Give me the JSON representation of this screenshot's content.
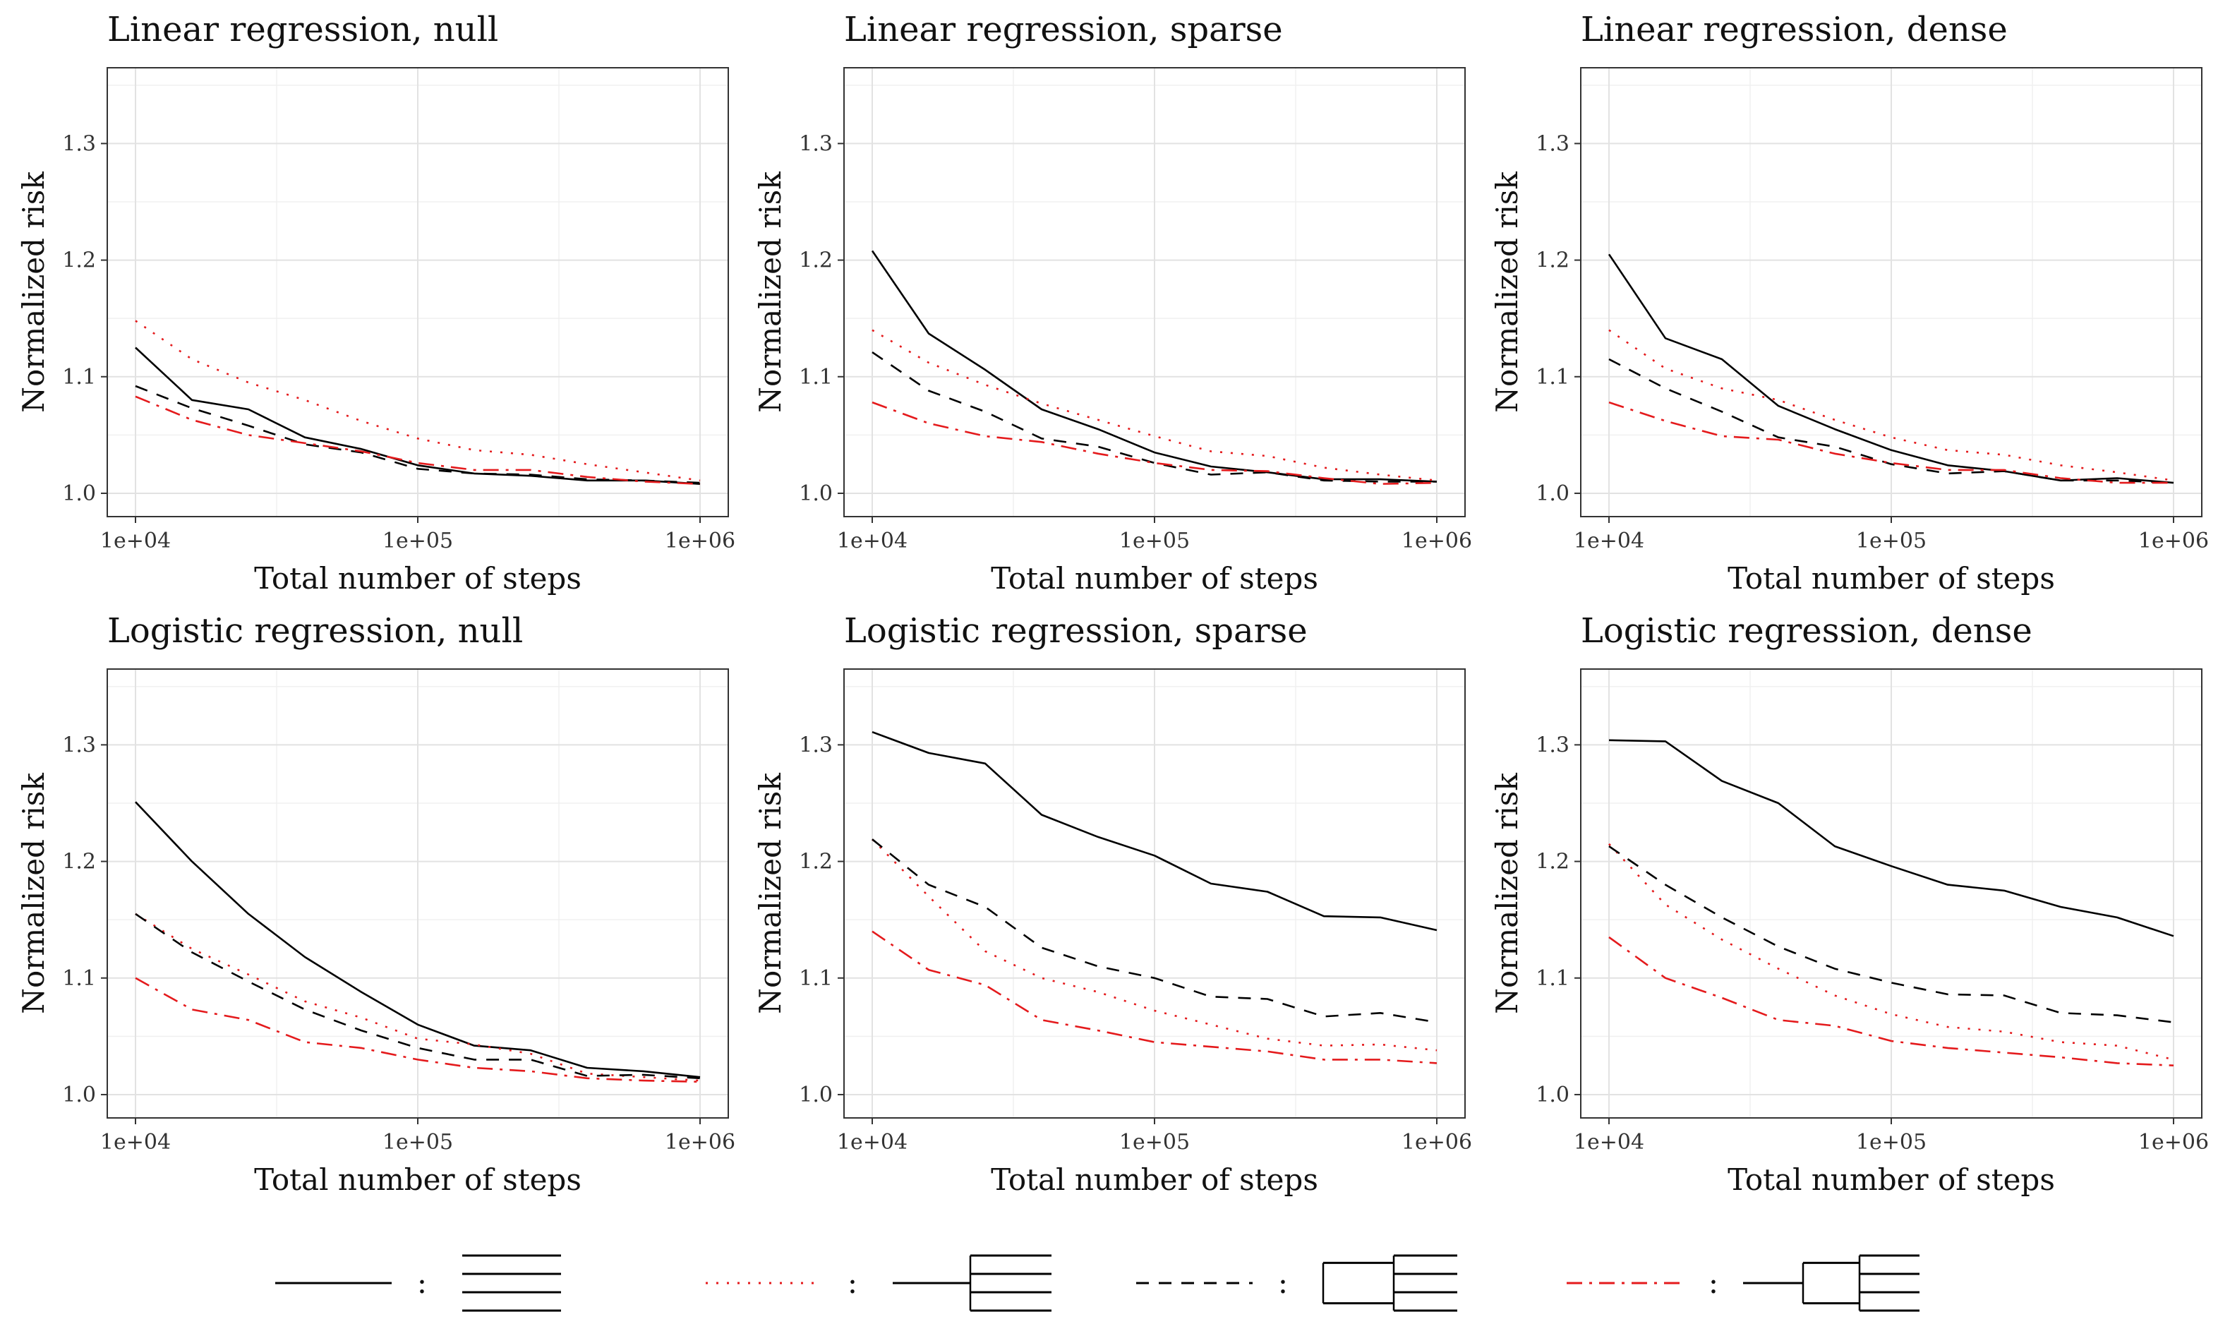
{
  "chart_data": [
    {
      "type": "line",
      "title": "Linear regression, null",
      "xlabel": "Total number of steps",
      "ylabel": "Normalized risk",
      "xscale": "log",
      "xlim": [
        10000,
        1000000
      ],
      "ylim": [
        0.98,
        1.365
      ],
      "xticks": [
        "1e+04",
        "1e+05",
        "1e+06"
      ],
      "yticks": [
        "1.0",
        "1.1",
        "1.2",
        "1.3"
      ],
      "grid": true,
      "x": [
        10000,
        15850,
        25120,
        39810,
        63100,
        100000,
        158500,
        251200,
        398100,
        631000,
        1000000
      ],
      "series": [
        {
          "style": "solid",
          "color": "#000000",
          "values": [
            1.125,
            1.08,
            1.072,
            1.048,
            1.038,
            1.024,
            1.017,
            1.015,
            1.011,
            1.011,
            1.008
          ]
        },
        {
          "style": "dotted",
          "color": "#e41a1c",
          "values": [
            1.148,
            1.115,
            1.095,
            1.08,
            1.062,
            1.047,
            1.037,
            1.033,
            1.025,
            1.018,
            1.011
          ]
        },
        {
          "style": "dashed",
          "color": "#000000",
          "values": [
            1.092,
            1.073,
            1.058,
            1.042,
            1.035,
            1.021,
            1.017,
            1.016,
            1.012,
            1.011,
            1.009
          ]
        },
        {
          "style": "dashdot",
          "color": "#e41a1c",
          "values": [
            1.083,
            1.063,
            1.05,
            1.043,
            1.036,
            1.026,
            1.02,
            1.02,
            1.014,
            1.01,
            1.008
          ]
        }
      ]
    },
    {
      "type": "line",
      "title": "Linear regression, sparse",
      "xlabel": "Total number of steps",
      "ylabel": "Normalized risk",
      "xscale": "log",
      "xlim": [
        10000,
        1000000
      ],
      "ylim": [
        0.98,
        1.365
      ],
      "xticks": [
        "1e+04",
        "1e+05",
        "1e+06"
      ],
      "yticks": [
        "1.0",
        "1.1",
        "1.2",
        "1.3"
      ],
      "grid": true,
      "x": [
        10000,
        15850,
        25120,
        39810,
        63100,
        100000,
        158500,
        251200,
        398100,
        631000,
        1000000
      ],
      "series": [
        {
          "style": "solid",
          "color": "#000000",
          "values": [
            1.208,
            1.137,
            1.106,
            1.072,
            1.055,
            1.035,
            1.023,
            1.018,
            1.012,
            1.012,
            1.01
          ]
        },
        {
          "style": "dotted",
          "color": "#e41a1c",
          "values": [
            1.14,
            1.112,
            1.093,
            1.077,
            1.063,
            1.049,
            1.036,
            1.032,
            1.022,
            1.016,
            1.011
          ]
        },
        {
          "style": "dashed",
          "color": "#000000",
          "values": [
            1.121,
            1.088,
            1.07,
            1.047,
            1.04,
            1.026,
            1.016,
            1.018,
            1.011,
            1.01,
            1.01
          ]
        },
        {
          "style": "dashdot",
          "color": "#e41a1c",
          "values": [
            1.078,
            1.06,
            1.049,
            1.044,
            1.034,
            1.026,
            1.02,
            1.019,
            1.013,
            1.008,
            1.009
          ]
        }
      ]
    },
    {
      "type": "line",
      "title": "Linear regression, dense",
      "xlabel": "Total number of steps",
      "ylabel": "Normalized risk",
      "xscale": "log",
      "xlim": [
        10000,
        1000000
      ],
      "ylim": [
        0.98,
        1.365
      ],
      "xticks": [
        "1e+04",
        "1e+05",
        "1e+06"
      ],
      "yticks": [
        "1.0",
        "1.1",
        "1.2",
        "1.3"
      ],
      "grid": true,
      "x": [
        10000,
        15850,
        25120,
        39810,
        63100,
        100000,
        158500,
        251200,
        398100,
        631000,
        1000000
      ],
      "series": [
        {
          "style": "solid",
          "color": "#000000",
          "values": [
            1.205,
            1.133,
            1.115,
            1.075,
            1.055,
            1.037,
            1.024,
            1.019,
            1.011,
            1.013,
            1.009
          ]
        },
        {
          "style": "dotted",
          "color": "#e41a1c",
          "values": [
            1.14,
            1.107,
            1.09,
            1.08,
            1.063,
            1.048,
            1.037,
            1.033,
            1.024,
            1.018,
            1.011
          ]
        },
        {
          "style": "dashed",
          "color": "#000000",
          "values": [
            1.115,
            1.09,
            1.07,
            1.048,
            1.04,
            1.025,
            1.017,
            1.019,
            1.011,
            1.011,
            1.009
          ]
        },
        {
          "style": "dashdot",
          "color": "#e41a1c",
          "values": [
            1.078,
            1.062,
            1.049,
            1.046,
            1.034,
            1.026,
            1.02,
            1.02,
            1.013,
            1.009,
            1.009
          ]
        }
      ]
    },
    {
      "type": "line",
      "title": "Logistic regression, null",
      "xlabel": "Total number of steps",
      "ylabel": "Normalized risk",
      "xscale": "log",
      "xlim": [
        10000,
        1000000
      ],
      "ylim": [
        0.98,
        1.365
      ],
      "xticks": [
        "1e+04",
        "1e+05",
        "1e+06"
      ],
      "yticks": [
        "1.0",
        "1.1",
        "1.2",
        "1.3"
      ],
      "grid": true,
      "x": [
        10000,
        15850,
        25120,
        39810,
        63100,
        100000,
        158500,
        251200,
        398100,
        631000,
        1000000
      ],
      "series": [
        {
          "style": "solid",
          "color": "#000000",
          "values": [
            1.251,
            1.2,
            1.155,
            1.118,
            1.088,
            1.06,
            1.042,
            1.038,
            1.023,
            1.02,
            1.015
          ]
        },
        {
          "style": "dotted",
          "color": "#e41a1c",
          "values": [
            1.155,
            1.125,
            1.103,
            1.08,
            1.066,
            1.048,
            1.043,
            1.035,
            1.018,
            1.015,
            1.012
          ]
        },
        {
          "style": "dashed",
          "color": "#000000",
          "values": [
            1.155,
            1.122,
            1.097,
            1.073,
            1.055,
            1.04,
            1.03,
            1.03,
            1.016,
            1.017,
            1.014
          ]
        },
        {
          "style": "dashdot",
          "color": "#e41a1c",
          "values": [
            1.1,
            1.073,
            1.064,
            1.045,
            1.04,
            1.03,
            1.023,
            1.02,
            1.014,
            1.012,
            1.011
          ]
        }
      ]
    },
    {
      "type": "line",
      "title": "Logistic regression, sparse",
      "xlabel": "Total number of steps",
      "ylabel": "Normalized risk",
      "xscale": "log",
      "xlim": [
        10000,
        1000000
      ],
      "ylim": [
        0.98,
        1.365
      ],
      "xticks": [
        "1e+04",
        "1e+05",
        "1e+06"
      ],
      "yticks": [
        "1.0",
        "1.1",
        "1.2",
        "1.3"
      ],
      "grid": true,
      "x": [
        10000,
        15850,
        25120,
        39810,
        63100,
        100000,
        158500,
        251200,
        398100,
        631000,
        1000000
      ],
      "series": [
        {
          "style": "solid",
          "color": "#000000",
          "values": [
            1.311,
            1.293,
            1.284,
            1.24,
            1.221,
            1.205,
            1.181,
            1.174,
            1.153,
            1.152,
            1.141
          ]
        },
        {
          "style": "dotted",
          "color": "#e41a1c",
          "values": [
            1.219,
            1.17,
            1.123,
            1.1,
            1.088,
            1.072,
            1.06,
            1.048,
            1.042,
            1.043,
            1.038
          ]
        },
        {
          "style": "dashed",
          "color": "#000000",
          "values": [
            1.219,
            1.18,
            1.161,
            1.126,
            1.11,
            1.1,
            1.084,
            1.082,
            1.067,
            1.07,
            1.062
          ]
        },
        {
          "style": "dashdot",
          "color": "#e41a1c",
          "values": [
            1.14,
            1.107,
            1.094,
            1.064,
            1.055,
            1.045,
            1.041,
            1.037,
            1.03,
            1.03,
            1.027
          ]
        }
      ]
    },
    {
      "type": "line",
      "title": "Logistic regression, dense",
      "xlabel": "Total number of steps",
      "ylabel": "Normalized risk",
      "xscale": "log",
      "xlim": [
        10000,
        1000000
      ],
      "ylim": [
        0.98,
        1.365
      ],
      "xticks": [
        "1e+04",
        "1e+05",
        "1e+06"
      ],
      "yticks": [
        "1.0",
        "1.1",
        "1.2",
        "1.3"
      ],
      "grid": true,
      "x": [
        10000,
        15850,
        25120,
        39810,
        63100,
        100000,
        158500,
        251200,
        398100,
        631000,
        1000000
      ],
      "series": [
        {
          "style": "solid",
          "color": "#000000",
          "values": [
            1.304,
            1.303,
            1.269,
            1.25,
            1.213,
            1.196,
            1.18,
            1.175,
            1.161,
            1.152,
            1.136
          ]
        },
        {
          "style": "dotted",
          "color": "#e41a1c",
          "values": [
            1.215,
            1.163,
            1.133,
            1.108,
            1.085,
            1.069,
            1.058,
            1.054,
            1.045,
            1.042,
            1.03
          ]
        },
        {
          "style": "dashed",
          "color": "#000000",
          "values": [
            1.213,
            1.18,
            1.152,
            1.127,
            1.108,
            1.096,
            1.086,
            1.085,
            1.07,
            1.068,
            1.062
          ]
        },
        {
          "style": "dashdot",
          "color": "#e41a1c",
          "values": [
            1.135,
            1.1,
            1.083,
            1.064,
            1.059,
            1.046,
            1.04,
            1.036,
            1.032,
            1.027,
            1.025
          ]
        }
      ]
    }
  ],
  "legend": {
    "placement": "bottom",
    "separator": ":",
    "entries": [
      {
        "style": "solid",
        "color": "#000000",
        "glyph": "four-parallel-lines"
      },
      {
        "style": "dotted",
        "color": "#e41a1c",
        "glyph": "single-line-into-four"
      },
      {
        "style": "dashed",
        "color": "#000000",
        "glyph": "two-lines-into-four"
      },
      {
        "style": "dashdot",
        "color": "#e41a1c",
        "glyph": "one-into-two-into-four"
      }
    ]
  }
}
